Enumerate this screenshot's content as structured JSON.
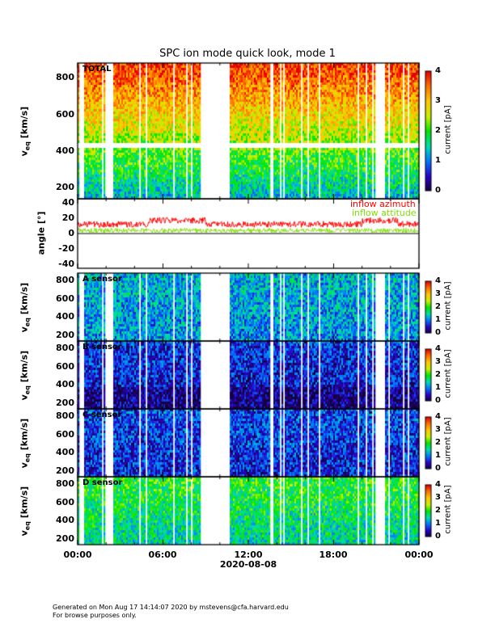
{
  "title": "SPC ion mode quick look, mode 1",
  "xaxis": {
    "ticks": [
      "00:00",
      "06:00",
      "12:00",
      "18:00",
      "00:00"
    ],
    "date": "2020-08-08"
  },
  "legend": {
    "azimuth": "inflow azimuth",
    "attitude": "inflow attitude",
    "azimuth_color": "#ff0000",
    "attitude_color": "#80e000"
  },
  "footer": {
    "line1": "Generated on Mon Aug 17 14:14:07 2020 by mstevens@cfa.harvard.edu",
    "line2": "For browse purposes only."
  },
  "chart_data": {
    "type": "heatmap",
    "title": "SPC ion mode quick look, mode 1",
    "xlabel": "2020-08-08",
    "xlim_hours": [
      0,
      24
    ],
    "data_gaps_hours": [
      [
        1.85,
        2.5
      ],
      [
        8.7,
        10.6
      ],
      [
        20.9,
        21.5
      ]
    ],
    "colorbar": {
      "label": "current [pA]",
      "range": [
        0,
        4
      ],
      "ticks_total": [
        "0",
        "1",
        "2",
        "3",
        "4"
      ],
      "ticks_sensor": [
        "0",
        "1",
        "2",
        "3",
        "4"
      ]
    },
    "panels": [
      {
        "name": "TOTAL",
        "ylabel": "v_eq [km/s]",
        "ylim": [
          140,
          880
        ],
        "yticks": [
          "200",
          "400",
          "600",
          "800"
        ],
        "mean_level_bottom": 1.3,
        "mean_level_top": 3.8
      },
      {
        "name": "angle",
        "ylabel": "angle [°]",
        "ylim": [
          -45,
          45
        ],
        "yticks": [
          "-40",
          "-20",
          "0",
          "20",
          "40"
        ],
        "series": [
          {
            "name": "inflow azimuth",
            "mean_deg": 12
          },
          {
            "name": "inflow attitude",
            "mean_deg": 4
          }
        ]
      },
      {
        "name": "A sensor",
        "ylabel": "v_eq [km/s]",
        "ylim": [
          140,
          880
        ],
        "yticks": [
          "200",
          "400",
          "600",
          "800"
        ],
        "mean_level": 1.1
      },
      {
        "name": "B sensor",
        "ylabel": "v_eq [km/s]",
        "ylim": [
          140,
          880
        ],
        "yticks": [
          "200",
          "400",
          "600",
          "800"
        ],
        "mean_level": 0.5
      },
      {
        "name": "C sensor",
        "ylabel": "v_eq [km/s]",
        "ylim": [
          140,
          880
        ],
        "yticks": [
          "200",
          "400",
          "600",
          "800"
        ],
        "mean_level": 0.6
      },
      {
        "name": "D sensor",
        "ylabel": "v_eq [km/s]",
        "ylim": [
          140,
          880
        ],
        "yticks": [
          "200",
          "400",
          "600",
          "800"
        ],
        "mean_level": 1.5
      }
    ]
  }
}
